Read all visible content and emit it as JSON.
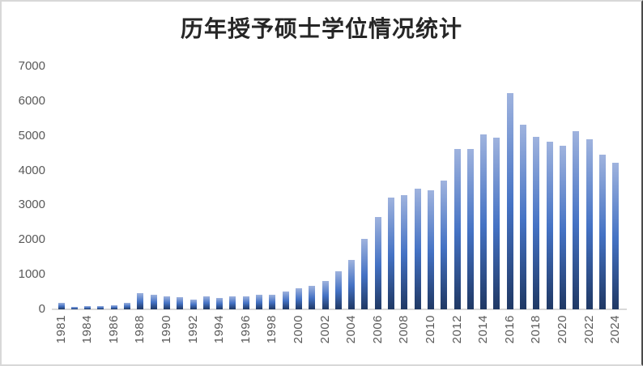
{
  "chart": {
    "title": "历年授予硕士学位情况统计"
  },
  "chart_data": {
    "type": "bar",
    "title": "历年授予硕士学位情况统计",
    "categories": [
      "1981",
      "1982",
      "1984",
      "1985",
      "1986",
      "1987",
      "1988",
      "1989",
      "1990",
      "1991",
      "1992",
      "1993",
      "1994",
      "1995",
      "1996",
      "1997",
      "1998",
      "1999",
      "2000",
      "2001",
      "2002",
      "2003",
      "2004",
      "2005",
      "2006",
      "2007",
      "2008",
      "2009",
      "2010",
      "2011",
      "2012",
      "2013",
      "2014",
      "2015",
      "2016",
      "2017",
      "2018",
      "2019",
      "2020",
      "2021",
      "2022",
      "2023",
      "2024"
    ],
    "values": [
      190,
      80,
      100,
      100,
      125,
      195,
      460,
      430,
      370,
      350,
      285,
      370,
      315,
      375,
      370,
      430,
      410,
      510,
      610,
      685,
      820,
      1090,
      1420,
      2030,
      2650,
      3220,
      3290,
      3480,
      3430,
      3710,
      4630,
      4610,
      5040,
      4950,
      6230,
      5330,
      4980,
      4840,
      4720,
      5140,
      4910,
      4460,
      4230
    ],
    "x_tick_labels_shown": [
      "1981",
      "1984",
      "1986",
      "1988",
      "1990",
      "1992",
      "1994",
      "1996",
      "1998",
      "2000",
      "2002",
      "2004",
      "2006",
      "2008",
      "2010",
      "2012",
      "2014",
      "2016",
      "2018",
      "2020",
      "2022",
      "2024"
    ],
    "x_tick_interval": 2,
    "yticks": [
      0,
      1000,
      2000,
      3000,
      4000,
      5000,
      6000,
      7000
    ],
    "ylim": [
      0,
      7000
    ],
    "xlabel": "",
    "ylabel": "",
    "grid": false,
    "legend": false,
    "colors": {
      "bar_gradient_top": "#9FB3DE",
      "bar_gradient_mid": "#4472C4",
      "bar_gradient_bottom": "#1F3864",
      "axis_line": "#D9D9D9",
      "tick_label": "#595959",
      "title": "#262626",
      "frame_border": "#D8D8D8",
      "frame_border_right": "#4A4A4A"
    }
  }
}
